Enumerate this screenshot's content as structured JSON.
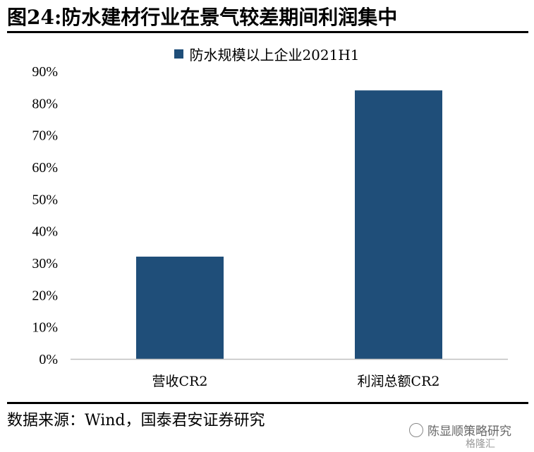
{
  "header": {
    "title": "图24:防水建材行业在景气较差期间利润集中"
  },
  "chart_data": {
    "type": "bar",
    "title": "",
    "categories": [
      "营收CR2",
      "利润总额CR2"
    ],
    "series": [
      {
        "name": "防水规模以上企业2021H1",
        "values": [
          32,
          84
        ],
        "color": "#1f4e79"
      }
    ],
    "ylim": [
      0,
      90
    ],
    "yticks": [
      "0%",
      "10%",
      "20%",
      "30%",
      "40%",
      "50%",
      "60%",
      "70%",
      "80%",
      "90%"
    ],
    "grid": false,
    "legend": "top-center",
    "xlabel": "",
    "ylabel": ""
  },
  "footer": {
    "source": "数据来源：Wind，国泰君安证券研究",
    "watermark": "陈显顺策略研究",
    "logo": "格隆汇"
  }
}
